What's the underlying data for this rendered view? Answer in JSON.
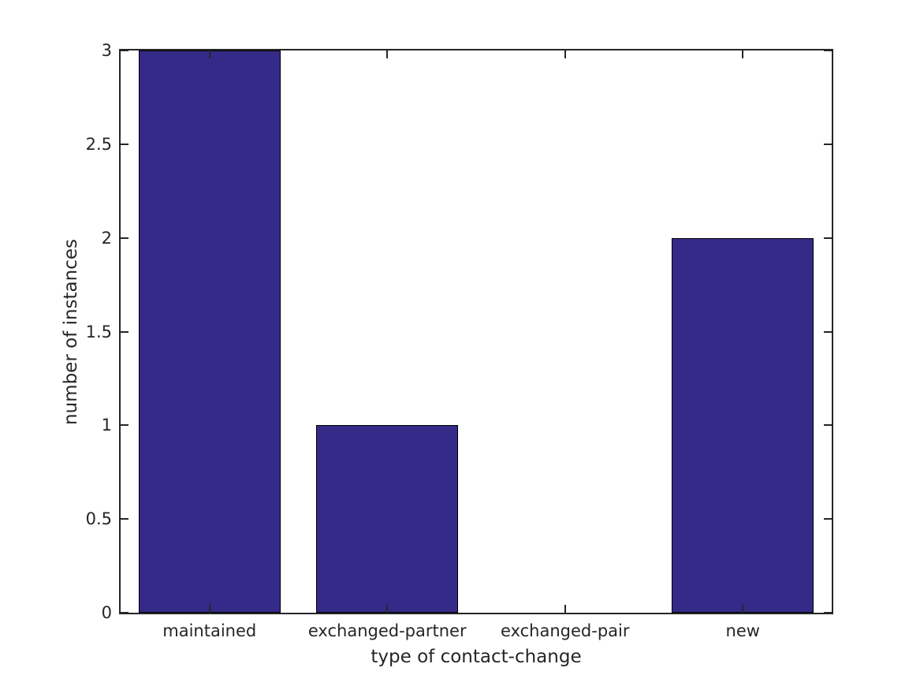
{
  "chart_data": {
    "type": "bar",
    "title": "",
    "xlabel": "type of contact-change",
    "ylabel": "number of instances",
    "categories": [
      "maintained",
      "exchanged-partner",
      "exchanged-pair",
      "new"
    ],
    "values": [
      3,
      1,
      0,
      2
    ],
    "ylim": [
      0,
      3
    ],
    "y_ticks": [
      0,
      0.5,
      1,
      1.5,
      2,
      2.5,
      3
    ],
    "y_tick_labels": [
      "0",
      "0.5",
      "1",
      "1.5",
      "2",
      "2.5",
      "3"
    ],
    "bar_width_fraction": 0.8,
    "grid": false,
    "legend": "none",
    "box": true,
    "tick_direction": "in",
    "bar_color": "#352A87",
    "bar_edge_color": "#000000",
    "axis_color": "#262626",
    "text_color": "#262626",
    "background_color": "#ffffff"
  }
}
